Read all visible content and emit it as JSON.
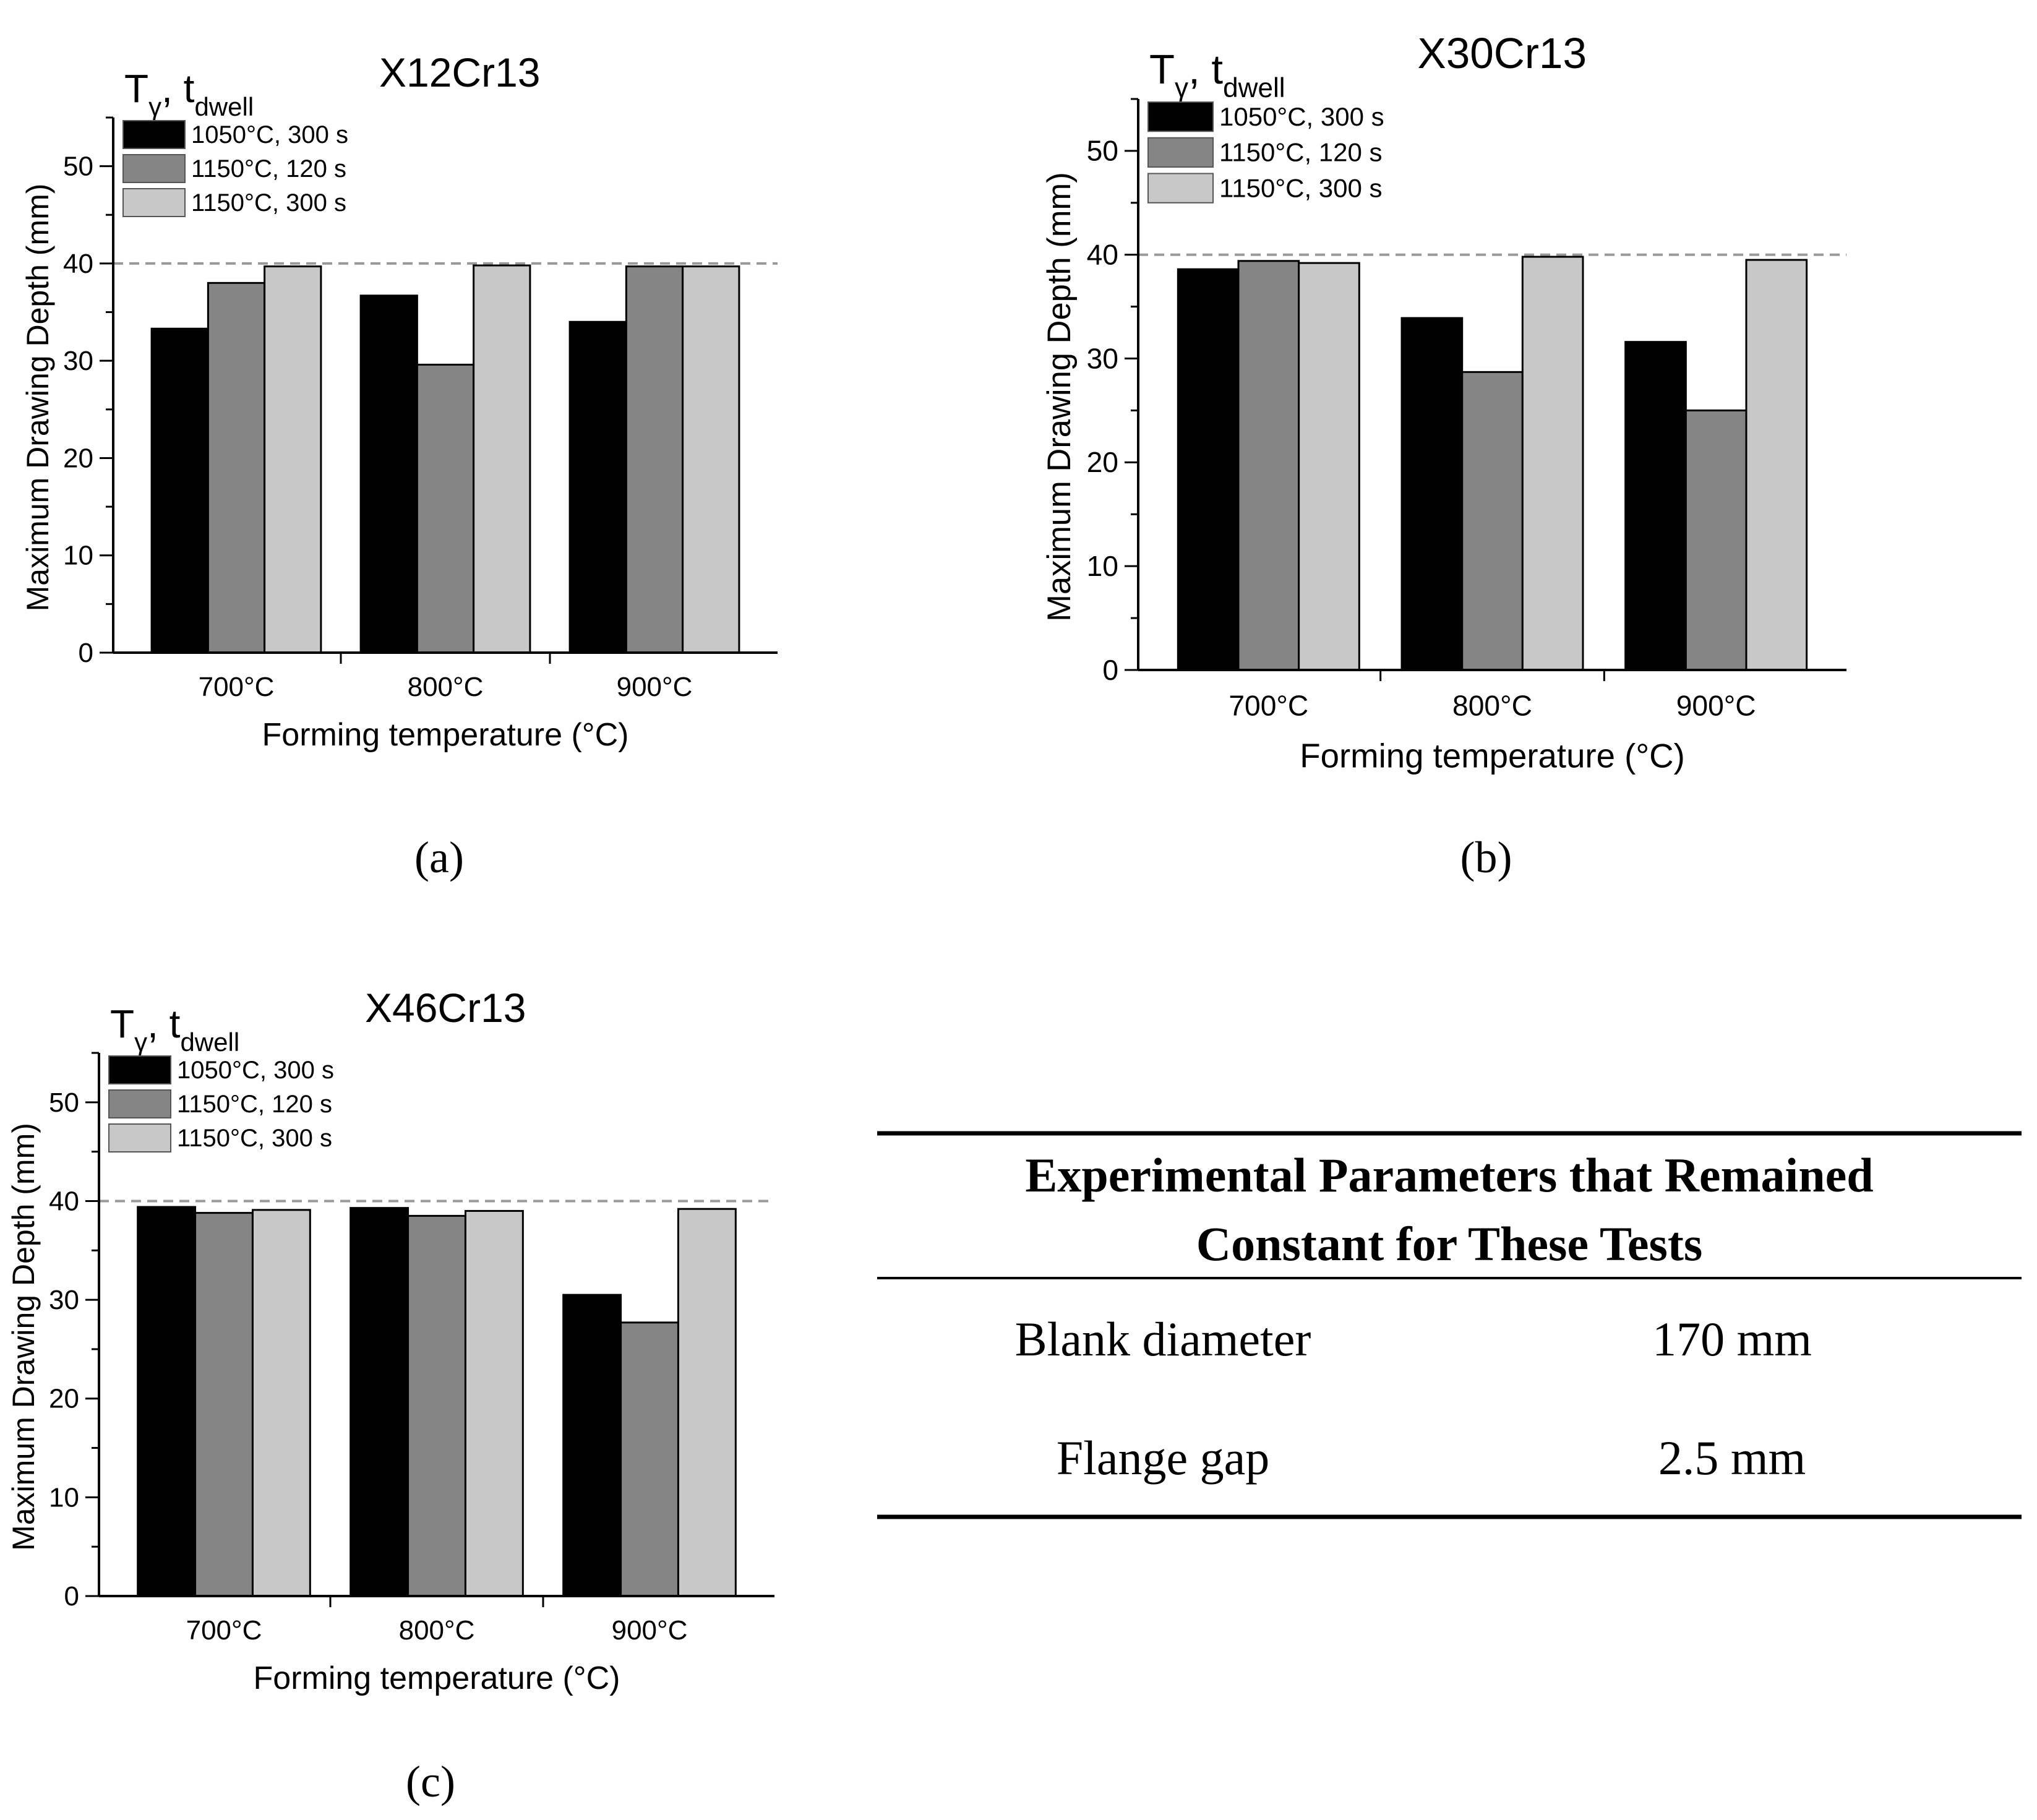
{
  "colors": {
    "series": [
      "#000000",
      "#858585",
      "#c8c8c8"
    ],
    "axis": "#000000",
    "reference_line": "#999999"
  },
  "chart_data": [
    {
      "type": "bar",
      "title": "X12Cr13",
      "panel_label": "(a)",
      "legend_title": {
        "main": "T",
        "sub1": "γ",
        "sep": ", t",
        "sub2": "dwell"
      },
      "legend_placement": "top-left",
      "xlabel": "Forming temperature (°C)",
      "ylabel": "Maximum Drawing Depth (mm)",
      "ylim": [
        0,
        55
      ],
      "yticks": [
        0,
        10,
        20,
        30,
        40,
        50
      ],
      "reference_line": 40,
      "categories": [
        "700°C",
        "800°C",
        "900°C"
      ],
      "series": [
        {
          "name": "1050°C, 300 s",
          "values": [
            33.3,
            36.7,
            34.0
          ]
        },
        {
          "name": "1150°C, 120 s",
          "values": [
            38.0,
            29.6,
            39.7
          ]
        },
        {
          "name": "1150°C, 300 s",
          "values": [
            39.7,
            39.8,
            39.7
          ]
        }
      ]
    },
    {
      "type": "bar",
      "title": "X30Cr13",
      "panel_label": "(b)",
      "legend_title": {
        "main": "T",
        "sub1": "γ",
        "sep": ", t",
        "sub2": "dwell"
      },
      "legend_placement": "top-left",
      "xlabel": "Forming temperature (°C)",
      "ylabel": "Maximum Drawing Depth (mm)",
      "ylim": [
        0,
        55
      ],
      "yticks": [
        0,
        10,
        20,
        30,
        40,
        50
      ],
      "reference_line": 40,
      "categories": [
        "700°C",
        "800°C",
        "900°C"
      ],
      "series": [
        {
          "name": "1050°C, 300 s",
          "values": [
            38.6,
            33.9,
            31.6
          ]
        },
        {
          "name": "1150°C, 120 s",
          "values": [
            39.4,
            28.7,
            25.0
          ]
        },
        {
          "name": "1150°C, 300 s",
          "values": [
            39.2,
            39.8,
            39.5
          ]
        }
      ]
    },
    {
      "type": "bar",
      "title": "X46Cr13",
      "panel_label": "(c)",
      "legend_title": {
        "main": "T",
        "sub1": "γ",
        "sep": ", t",
        "sub2": "dwell"
      },
      "legend_placement": "top-left",
      "xlabel": "Forming temperature (°C)",
      "ylabel": "Maximum Drawing Depth (mm)",
      "ylim": [
        0,
        55
      ],
      "yticks": [
        0,
        10,
        20,
        30,
        40,
        50
      ],
      "reference_line": 40,
      "categories": [
        "700°C",
        "800°C",
        "900°C"
      ],
      "series": [
        {
          "name": "1050°C, 300 s",
          "values": [
            39.4,
            39.3,
            30.5
          ]
        },
        {
          "name": "1150°C, 120 s",
          "values": [
            38.8,
            38.5,
            27.7
          ]
        },
        {
          "name": "1150°C, 300 s",
          "values": [
            39.1,
            39.0,
            39.2
          ]
        }
      ]
    }
  ],
  "parameters_table": {
    "title_line1": "Experimental Parameters that Remained",
    "title_line2": "Constant for These Tests",
    "rows": [
      {
        "label": "Blank diameter",
        "value": "170 mm"
      },
      {
        "label": "Flange gap",
        "value": "2.5 mm"
      }
    ]
  }
}
